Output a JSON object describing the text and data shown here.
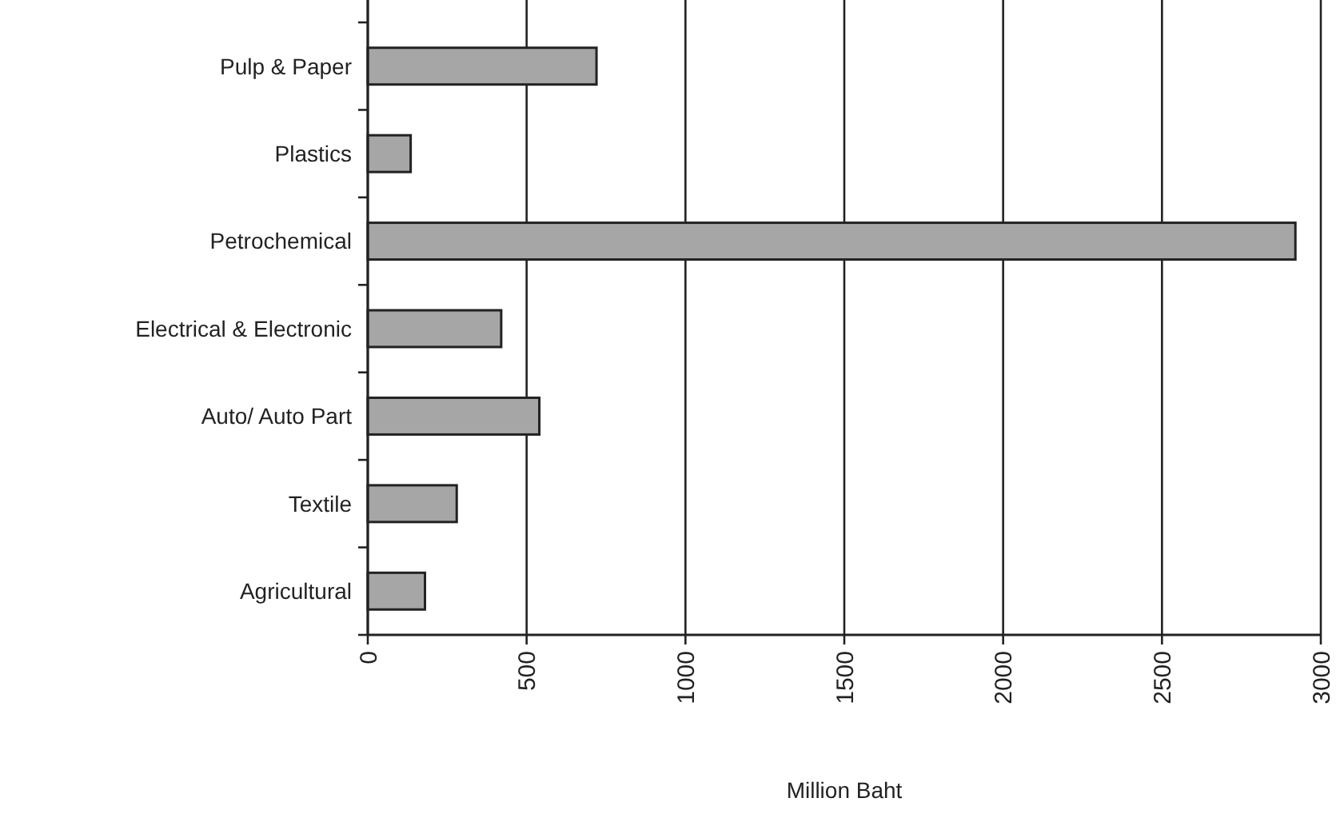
{
  "chart_data": {
    "type": "bar",
    "orientation": "horizontal",
    "xlabel": "Million Baht",
    "categories": [
      "Pulp & Paper",
      "Plastics",
      "Petrochemical",
      "Electrical & Electronic",
      "Auto/ Auto Part",
      "Textile",
      "Agricultural"
    ],
    "values": [
      720,
      135,
      2920,
      420,
      540,
      280,
      180
    ],
    "color": "#a6a6a6",
    "xlim": [
      0,
      3000
    ],
    "xticks": [
      0,
      500,
      1000,
      1500,
      2000,
      2500,
      3000
    ],
    "grid": "x"
  }
}
